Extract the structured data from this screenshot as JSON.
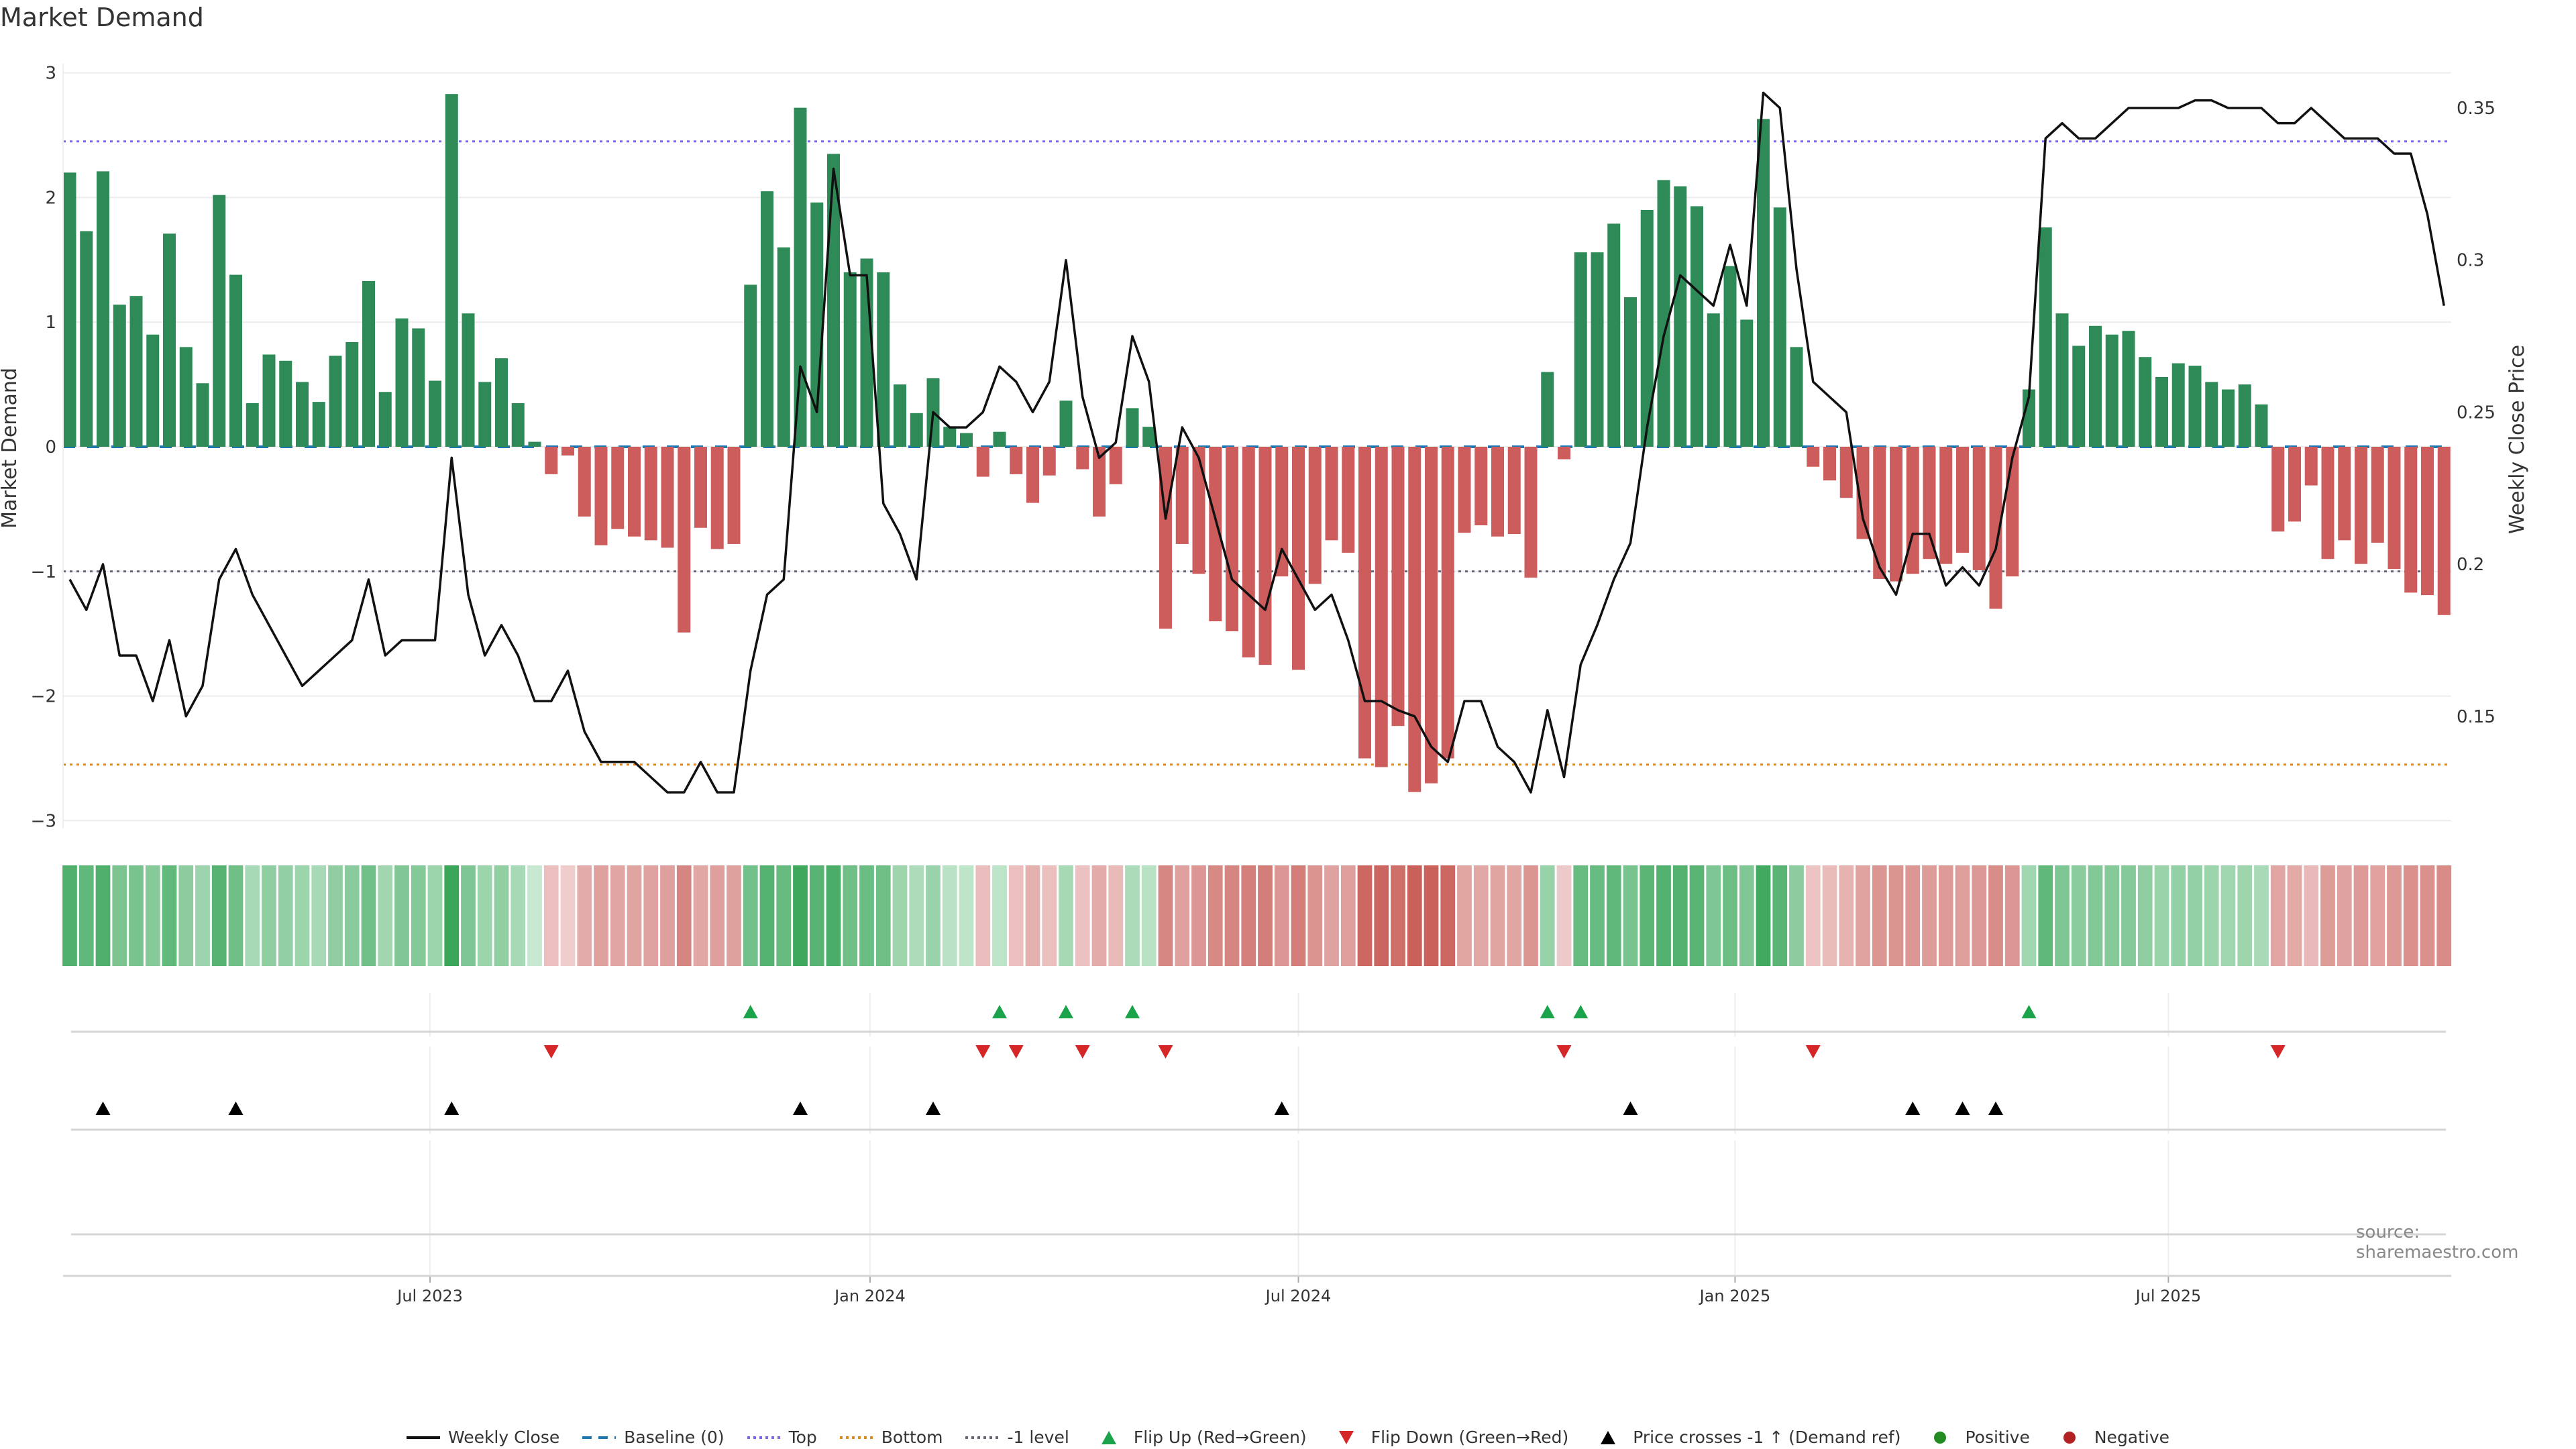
{
  "title": "Market Demand",
  "source": "source: sharemaestro.com",
  "colors": {
    "positive_bar": "#2e8b57",
    "negative_bar": "#cd5c5c",
    "price_line": "#111111",
    "baseline": "#1f77b4",
    "top": "#7b68ee",
    "bottom": "#e08a1e",
    "minus_one": "#666677",
    "flip_up": "#1aa34a",
    "flip_down": "#d62728",
    "cross": "#000000",
    "positive_dot": "#228b22",
    "negative_dot": "#b22222"
  },
  "chart_data": {
    "type": "bar+line",
    "title": "Market Demand",
    "ylabel": "Market Demand",
    "y2label": "Weekly Close Price",
    "ylim": [
      -3,
      3
    ],
    "y2lim": [
      0.1156,
      0.3616
    ],
    "yticks": [
      "3",
      "2",
      "1",
      "0",
      "−1",
      "−2",
      "−3"
    ],
    "ytick_values": [
      3,
      2,
      1,
      0,
      -1,
      -2,
      -3
    ],
    "y2ticks": [
      "0.35",
      "0.3",
      "0.25",
      "0.2",
      "0.15"
    ],
    "y2tick_values": [
      0.35,
      0.3,
      0.25,
      0.2,
      0.15
    ],
    "xticks": [
      {
        "label": "Jul 2023",
        "week": 22.7
      },
      {
        "label": "Jan 2024",
        "week": 49.2
      },
      {
        "label": "Jul 2024",
        "week": 75.0
      },
      {
        "label": "Jan 2025",
        "week": 101.3
      },
      {
        "label": "Jul 2025",
        "week": 127.4
      }
    ],
    "reference_lines": {
      "baseline": 0,
      "top": 2.45,
      "bottom": -2.55,
      "minus_one": -1
    },
    "demand": [
      2.2,
      1.73,
      2.21,
      1.14,
      1.21,
      0.9,
      1.71,
      0.8,
      0.51,
      2.02,
      1.38,
      0.35,
      0.74,
      0.69,
      0.52,
      0.36,
      0.73,
      0.84,
      1.33,
      0.44,
      1.03,
      0.95,
      0.53,
      2.83,
      1.07,
      0.52,
      0.71,
      0.35,
      0.04,
      -0.22,
      -0.07,
      -0.56,
      -0.79,
      -0.66,
      -0.72,
      -0.75,
      -0.81,
      -1.49,
      -0.65,
      -0.82,
      -0.78,
      1.3,
      2.05,
      1.6,
      2.72,
      1.96,
      2.35,
      1.4,
      1.51,
      1.4,
      0.5,
      0.27,
      0.55,
      0.16,
      0.11,
      -0.24,
      0.12,
      -0.22,
      -0.45,
      -0.23,
      0.37,
      -0.18,
      -0.56,
      -0.3,
      0.31,
      0.16,
      -1.46,
      -0.78,
      -1.02,
      -1.4,
      -1.48,
      -1.69,
      -1.75,
      -1.04,
      -1.79,
      -1.1,
      -0.75,
      -0.85,
      -2.5,
      -2.57,
      -2.24,
      -2.77,
      -2.7,
      -2.5,
      -0.69,
      -0.63,
      -0.72,
      -0.7,
      -1.05,
      0.6,
      -0.1,
      1.56,
      1.56,
      1.79,
      1.2,
      1.9,
      2.14,
      2.09,
      1.93,
      1.07,
      1.45,
      1.02,
      2.63,
      1.92,
      0.8,
      -0.16,
      -0.27,
      -0.41,
      -0.74,
      -1.06,
      -1.08,
      -1.02,
      -0.9,
      -0.94,
      -0.85,
      -0.99,
      -1.3,
      -1.04,
      0.46,
      1.76,
      1.07,
      0.81,
      0.97,
      0.9,
      0.93,
      0.72,
      0.56,
      0.67,
      0.65,
      0.52,
      0.46,
      0.5,
      0.34,
      -0.68,
      -0.6,
      -0.31,
      -0.9,
      -0.75,
      -0.94,
      -0.77,
      -0.98,
      -1.17,
      -1.19,
      -1.35
    ],
    "weekly_close": [
      0.195,
      0.185,
      0.2,
      0.17,
      0.17,
      0.155,
      0.175,
      0.15,
      0.16,
      0.195,
      0.205,
      0.19,
      0.18,
      0.17,
      0.16,
      0.165,
      0.17,
      0.175,
      0.195,
      0.17,
      0.175,
      0.175,
      0.175,
      0.235,
      0.19,
      0.17,
      0.18,
      0.17,
      0.155,
      0.155,
      0.165,
      0.145,
      0.135,
      0.135,
      0.135,
      0.13,
      0.125,
      0.125,
      0.135,
      0.125,
      0.125,
      0.165,
      0.19,
      0.195,
      0.265,
      0.25,
      0.33,
      0.295,
      0.295,
      0.22,
      0.21,
      0.195,
      0.25,
      0.245,
      0.245,
      0.25,
      0.265,
      0.26,
      0.25,
      0.26,
      0.3,
      0.255,
      0.235,
      0.24,
      0.275,
      0.26,
      0.215,
      0.245,
      0.235,
      0.215,
      0.195,
      0.19,
      0.185,
      0.205,
      0.195,
      0.185,
      0.19,
      0.175,
      0.155,
      0.155,
      0.152,
      0.15,
      0.14,
      0.135,
      0.155,
      0.155,
      0.14,
      0.135,
      0.125,
      0.152,
      0.13,
      0.167,
      0.18,
      0.195,
      0.207,
      0.245,
      0.275,
      0.295,
      0.29,
      0.285,
      0.305,
      0.285,
      0.355,
      0.35,
      0.297,
      0.26,
      0.255,
      0.25,
      0.215,
      0.199,
      0.19,
      0.21,
      0.21,
      0.193,
      0.199,
      0.193,
      0.205,
      0.235,
      0.255,
      0.34,
      0.345,
      0.34,
      0.34,
      0.345,
      0.35,
      0.35,
      0.35,
      0.35,
      0.3525,
      0.3525,
      0.35,
      0.35,
      0.35,
      0.345,
      0.345,
      0.35,
      0.345,
      0.34,
      0.34,
      0.34,
      0.335,
      0.335,
      0.315,
      0.285
    ],
    "flip_up_weeks": [
      42,
      57,
      61,
      65,
      90,
      92,
      119
    ],
    "flip_down_weeks": [
      30,
      56,
      58,
      62,
      67,
      91,
      106,
      134
    ],
    "price_cross_weeks": [
      3,
      11,
      24,
      45,
      53,
      74,
      95,
      112,
      115,
      117
    ],
    "legend_placement": "bottom-center"
  },
  "legend": [
    {
      "label": "Weekly Close",
      "symbol": "line"
    },
    {
      "label": "Baseline (0)",
      "symbol": "dash"
    },
    {
      "label": "Top",
      "symbol": "dot-top"
    },
    {
      "label": "Bottom",
      "symbol": "dot-bottom"
    },
    {
      "label": "-1 level",
      "symbol": "dot-minus"
    },
    {
      "label": "Flip Up (Red→Green)",
      "symbol": "tri-up-green"
    },
    {
      "label": "Flip Down (Green→Red)",
      "symbol": "tri-down-red"
    },
    {
      "label": "Price crosses -1 ↑ (Demand ref)",
      "symbol": "tri-up-black"
    },
    {
      "label": "Positive",
      "symbol": "dot-green"
    },
    {
      "label": "Negative",
      "symbol": "dot-red"
    }
  ]
}
